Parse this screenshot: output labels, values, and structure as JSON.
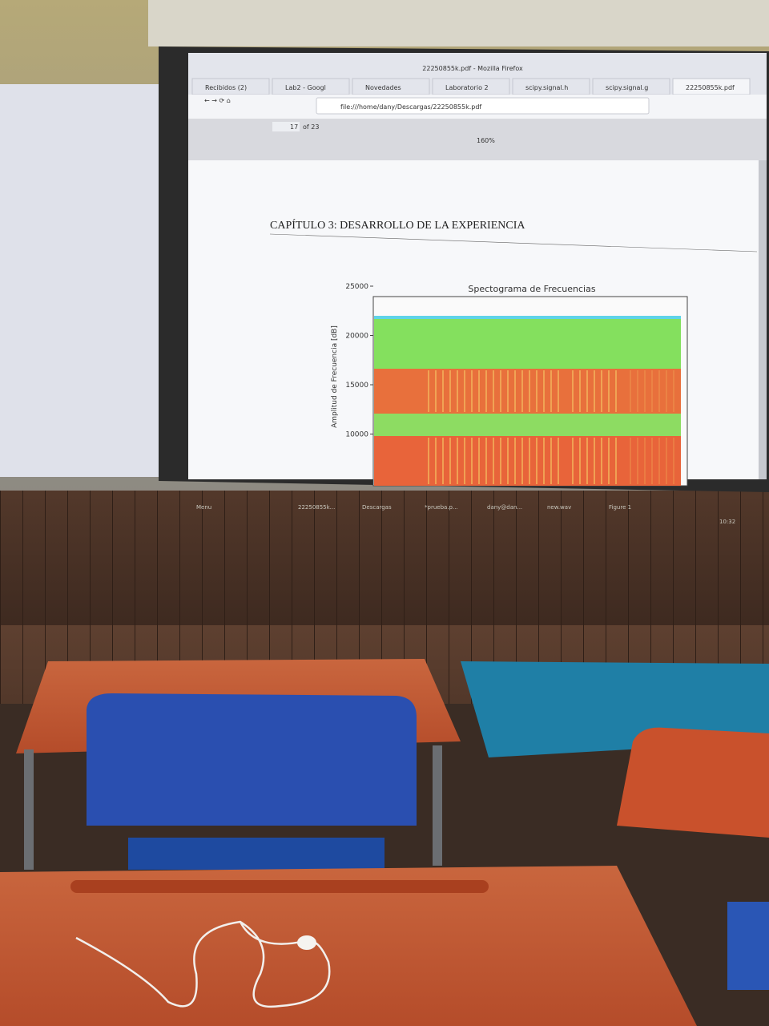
{
  "window_title": "22250855k.pdf - Mozilla Firefox",
  "tabs": [
    "Recibidos (2)",
    "Lab2 - Googl",
    "Novedades",
    "Laboratorio 2",
    "scipy.signal.h",
    "scipy.signal.g",
    "22250855k.pdf"
  ],
  "url": "file:///home/dany/Descargas/22250855k.pdf",
  "pdf_toolbar": {
    "page": "17",
    "page_count": "of 23",
    "zoom": "160%"
  },
  "document": {
    "heading": "CAPÍTULO 3: DESARROLLO DE LA EXPERIENCIA",
    "figure": {
      "title": "Spectograma de Frecuencias",
      "ylabel": "Amplitud de Frecuencia [dB]",
      "yticks": [
        25000,
        20000,
        15000,
        10000
      ]
    }
  },
  "taskbar": {
    "items": [
      "Menu",
      "22250855k...",
      "Descargas",
      "*prueba.p...",
      "dany@dan...",
      "new.wav",
      "Figure 1"
    ],
    "clock": "10:32"
  }
}
